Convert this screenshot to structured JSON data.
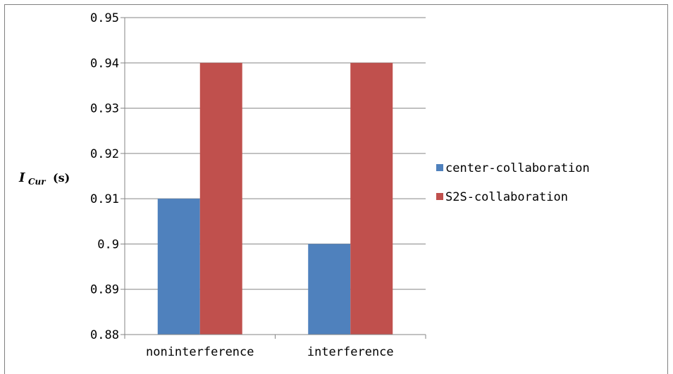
{
  "chart_data": {
    "type": "bar",
    "categories": [
      "noninterference",
      "interference"
    ],
    "series": [
      {
        "name": "center-collaboration",
        "values": [
          0.91,
          0.9
        ],
        "color": "#4F81BD"
      },
      {
        "name": "S2S-collaboration",
        "values": [
          0.94,
          0.94
        ],
        "color": "#C0504D"
      }
    ],
    "ylim": [
      0.88,
      0.95
    ],
    "yticks": [
      0.88,
      0.89,
      0.9,
      0.91,
      0.92,
      0.93,
      0.94,
      0.95
    ],
    "ytick_labels": [
      "0.88",
      "0.89",
      "0.9",
      "0.91",
      "0.92",
      "0.93",
      "0.94",
      "0.95"
    ],
    "ylabel": {
      "main": "I",
      "sub": "Cur",
      "unit": "(s)"
    },
    "xlabel": "",
    "title": "",
    "grid": true,
    "gridline_color": "#868686",
    "axis_color": "#868686",
    "legend_position": "right"
  }
}
